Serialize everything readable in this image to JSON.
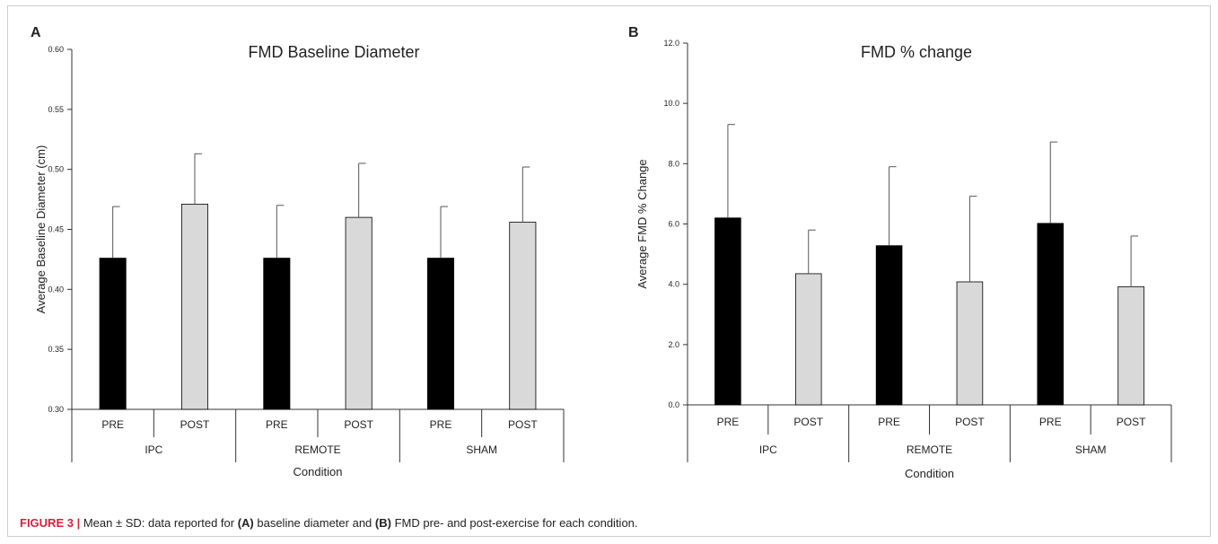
{
  "caption": {
    "figure_label": "FIGURE 3 |",
    "part1": " Mean ± SD: data reported for ",
    "ref_a": "(A)",
    "part2": " baseline diameter and ",
    "ref_b": "(B)",
    "part3": " FMD pre- and post-exercise for each condition."
  },
  "colors": {
    "pre": "#000000",
    "post": "#d9d9d9",
    "axis": "#333333"
  },
  "chart_data": [
    {
      "panel_label": "A",
      "type": "bar",
      "title": "FMD Baseline Diameter",
      "xlabel": "Condition",
      "ylabel": "Average Baseline Diameter  (cm)",
      "ylim": [
        0.3,
        0.6
      ],
      "yticks": [
        "0.30",
        "0.35",
        "0.40",
        "0.45",
        "0.50",
        "0.55",
        "0.60"
      ],
      "ytick_values": [
        0.3,
        0.35,
        0.4,
        0.45,
        0.5,
        0.55,
        0.6
      ],
      "groups": [
        "IPC",
        "REMOTE",
        "SHAM"
      ],
      "categories": [
        "PRE",
        "POST",
        "PRE",
        "POST",
        "PRE",
        "POST"
      ],
      "values": [
        0.426,
        0.471,
        0.426,
        0.46,
        0.426,
        0.456
      ],
      "error_sd": [
        0.043,
        0.042,
        0.044,
        0.045,
        0.043,
        0.046
      ],
      "grid": false
    },
    {
      "panel_label": "B",
      "type": "bar",
      "title": "FMD % change",
      "xlabel": "Condition",
      "ylabel": "Average FMD % Change",
      "ylim": [
        0,
        12
      ],
      "yticks": [
        "0.0",
        "2.0",
        "4.0",
        "6.0",
        "8.0",
        "10.0",
        "12.0"
      ],
      "ytick_values": [
        0,
        2,
        4,
        6,
        8,
        10,
        12
      ],
      "groups": [
        "IPC",
        "REMOTE",
        "SHAM"
      ],
      "categories": [
        "PRE",
        "POST",
        "PRE",
        "POST",
        "PRE",
        "POST"
      ],
      "values": [
        6.2,
        4.35,
        5.28,
        4.08,
        6.02,
        3.92
      ],
      "error_sd": [
        3.1,
        1.45,
        2.62,
        2.84,
        2.7,
        1.68
      ],
      "grid": false
    }
  ]
}
